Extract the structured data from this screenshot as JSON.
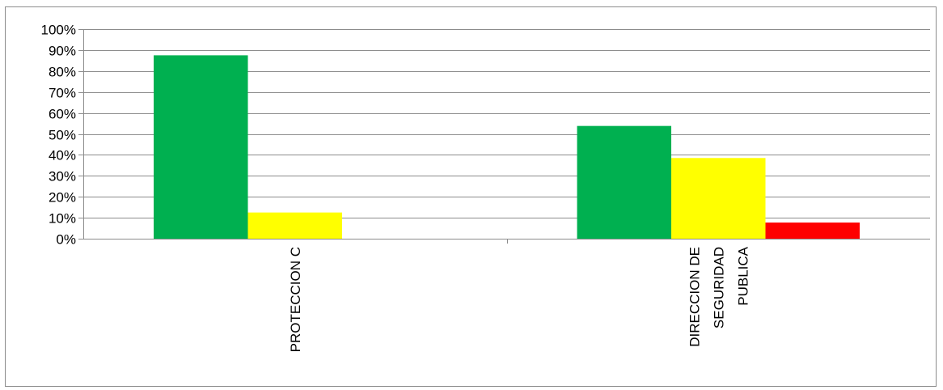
{
  "chart_data": {
    "type": "bar",
    "title": "",
    "xlabel": "",
    "ylabel": "",
    "ylim": [
      0,
      1
    ],
    "y_tick_values": [
      0,
      0.1,
      0.2,
      0.3,
      0.4,
      0.5,
      0.6,
      0.7,
      0.8,
      0.9,
      1.0
    ],
    "y_tick_labels": [
      "0%",
      "10%",
      "20%",
      "30%",
      "40%",
      "50%",
      "60%",
      "70%",
      "80%",
      "90%",
      "100%"
    ],
    "grid": true,
    "legend": "none",
    "categories": [
      {
        "lines": [
          "PROTECCION C"
        ]
      },
      {
        "lines": [
          "DIRECCION DE",
          "SEGURIDAD",
          "PUBLICA"
        ]
      }
    ],
    "series": [
      {
        "color": "#00b050",
        "values": [
          0.875,
          0.538
        ]
      },
      {
        "color": "#ffff00",
        "values": [
          0.125,
          0.385
        ]
      },
      {
        "color": "#ff0000",
        "values": [
          0,
          0.077
        ]
      }
    ]
  }
}
